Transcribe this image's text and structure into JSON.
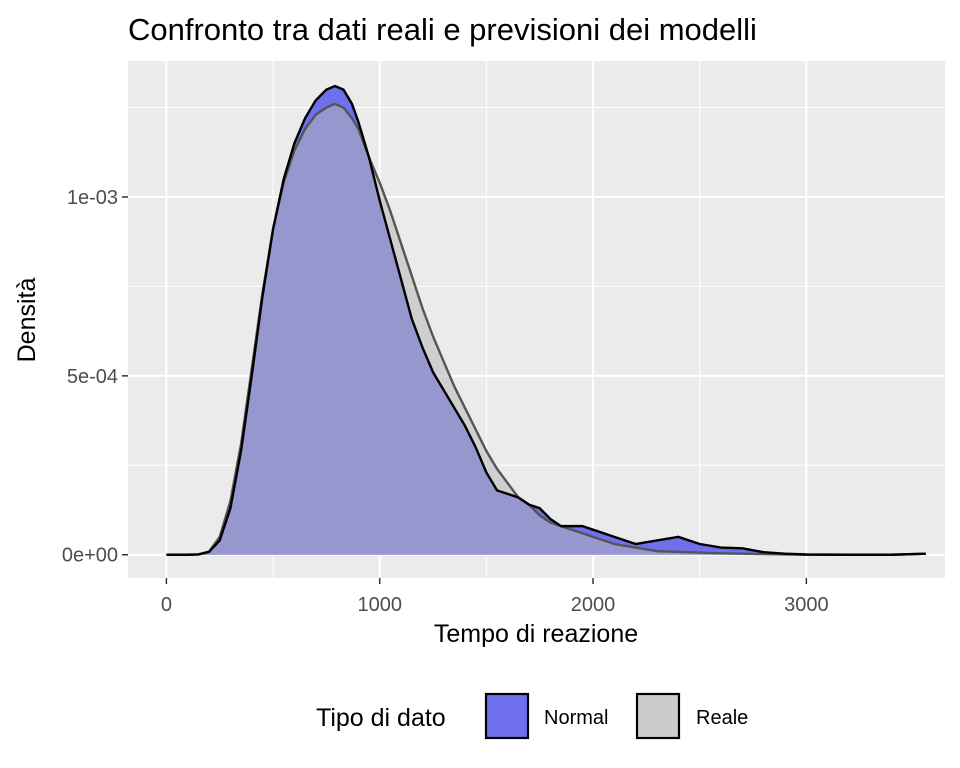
{
  "chart_data": {
    "type": "area",
    "title": "Confronto tra dati reali e previsioni dei modelli",
    "xlabel": "Tempo di reazione",
    "ylabel": "Densità",
    "xlim": [
      -180,
      3650
    ],
    "ylim": [
      -6.5e-05,
      0.00138
    ],
    "x_ticks": [
      0,
      1000,
      2000,
      3000
    ],
    "x_tick_labels": [
      "0",
      "1000",
      "2000",
      "3000"
    ],
    "y_ticks": [
      0,
      0.0005,
      0.001
    ],
    "y_tick_labels": [
      "0e+00",
      "5e-04",
      "1e-03"
    ],
    "grid": true,
    "legend": {
      "title": "Tipo di dato",
      "position": "bottom"
    },
    "series": [
      {
        "name": "Normal",
        "fill": "#7070ee",
        "line": "#000000",
        "points": [
          [
            0,
            0
          ],
          [
            100,
            0
          ],
          [
            150,
            1e-06
          ],
          [
            200,
            8e-06
          ],
          [
            250,
            4e-05
          ],
          [
            300,
            0.00013
          ],
          [
            350,
            0.00029
          ],
          [
            400,
            0.0005
          ],
          [
            450,
            0.00072
          ],
          [
            500,
            0.00091
          ],
          [
            550,
            0.00105
          ],
          [
            600,
            0.00115
          ],
          [
            650,
            0.00122
          ],
          [
            700,
            0.00127
          ],
          [
            750,
            0.0013
          ],
          [
            790,
            0.00131
          ],
          [
            830,
            0.0013
          ],
          [
            870,
            0.00126
          ],
          [
            900,
            0.00121
          ],
          [
            950,
            0.00111
          ],
          [
            1000,
            0.00099
          ],
          [
            1050,
            0.00088
          ],
          [
            1100,
            0.00077
          ],
          [
            1150,
            0.00066
          ],
          [
            1200,
            0.00058
          ],
          [
            1250,
            0.00051
          ],
          [
            1300,
            0.00046
          ],
          [
            1350,
            0.00041
          ],
          [
            1400,
            0.00036
          ],
          [
            1450,
            0.0003
          ],
          [
            1500,
            0.00023
          ],
          [
            1550,
            0.00018
          ],
          [
            1600,
            0.00017
          ],
          [
            1650,
            0.00016
          ],
          [
            1700,
            0.00014
          ],
          [
            1750,
            0.00013
          ],
          [
            1800,
            0.0001
          ],
          [
            1850,
            8e-05
          ],
          [
            1900,
            8e-05
          ],
          [
            1950,
            8e-05
          ],
          [
            2000,
            7e-05
          ],
          [
            2100,
            5e-05
          ],
          [
            2200,
            3e-05
          ],
          [
            2300,
            4e-05
          ],
          [
            2400,
            5e-05
          ],
          [
            2500,
            3e-05
          ],
          [
            2600,
            2e-05
          ],
          [
            2700,
            1.8e-05
          ],
          [
            2800,
            7e-06
          ],
          [
            2900,
            3e-06
          ],
          [
            3000,
            1e-06
          ],
          [
            3200,
            0
          ],
          [
            3400,
            0
          ],
          [
            3560,
            3e-06
          ]
        ]
      },
      {
        "name": "Reale",
        "fill": "#cccccc",
        "line": "#555555",
        "points": [
          [
            0,
            0
          ],
          [
            100,
            0
          ],
          [
            150,
            1e-06
          ],
          [
            200,
            9e-06
          ],
          [
            250,
            5e-05
          ],
          [
            300,
            0.00015
          ],
          [
            350,
            0.00031
          ],
          [
            400,
            0.00052
          ],
          [
            450,
            0.00073
          ],
          [
            500,
            0.00091
          ],
          [
            550,
            0.00104
          ],
          [
            600,
            0.00113
          ],
          [
            650,
            0.00119
          ],
          [
            700,
            0.00123
          ],
          [
            750,
            0.00125
          ],
          [
            790,
            0.00126
          ],
          [
            830,
            0.00125
          ],
          [
            870,
            0.00122
          ],
          [
            900,
            0.00119
          ],
          [
            950,
            0.00111
          ],
          [
            1000,
            0.00104
          ],
          [
            1050,
            0.00096
          ],
          [
            1100,
            0.00087
          ],
          [
            1150,
            0.00078
          ],
          [
            1200,
            0.00069
          ],
          [
            1250,
            0.00061
          ],
          [
            1300,
            0.00054
          ],
          [
            1350,
            0.00047
          ],
          [
            1400,
            0.00041
          ],
          [
            1450,
            0.00035
          ],
          [
            1500,
            0.00029
          ],
          [
            1550,
            0.00024
          ],
          [
            1600,
            0.0002
          ],
          [
            1650,
            0.00016
          ],
          [
            1700,
            0.00014
          ],
          [
            1750,
            0.00011
          ],
          [
            1800,
            9e-05
          ],
          [
            1850,
            8e-05
          ],
          [
            1900,
            7e-05
          ],
          [
            1950,
            6e-05
          ],
          [
            2000,
            5e-05
          ],
          [
            2100,
            3e-05
          ],
          [
            2200,
            2e-05
          ],
          [
            2300,
            1e-05
          ],
          [
            2400,
            8e-06
          ],
          [
            2500,
            6e-06
          ],
          [
            2600,
            4e-06
          ],
          [
            2700,
            3e-06
          ],
          [
            2800,
            2e-06
          ],
          [
            2900,
            1e-06
          ],
          [
            3000,
            0
          ],
          [
            3200,
            0
          ],
          [
            3400,
            0
          ],
          [
            3560,
            3e-06
          ]
        ]
      }
    ]
  }
}
